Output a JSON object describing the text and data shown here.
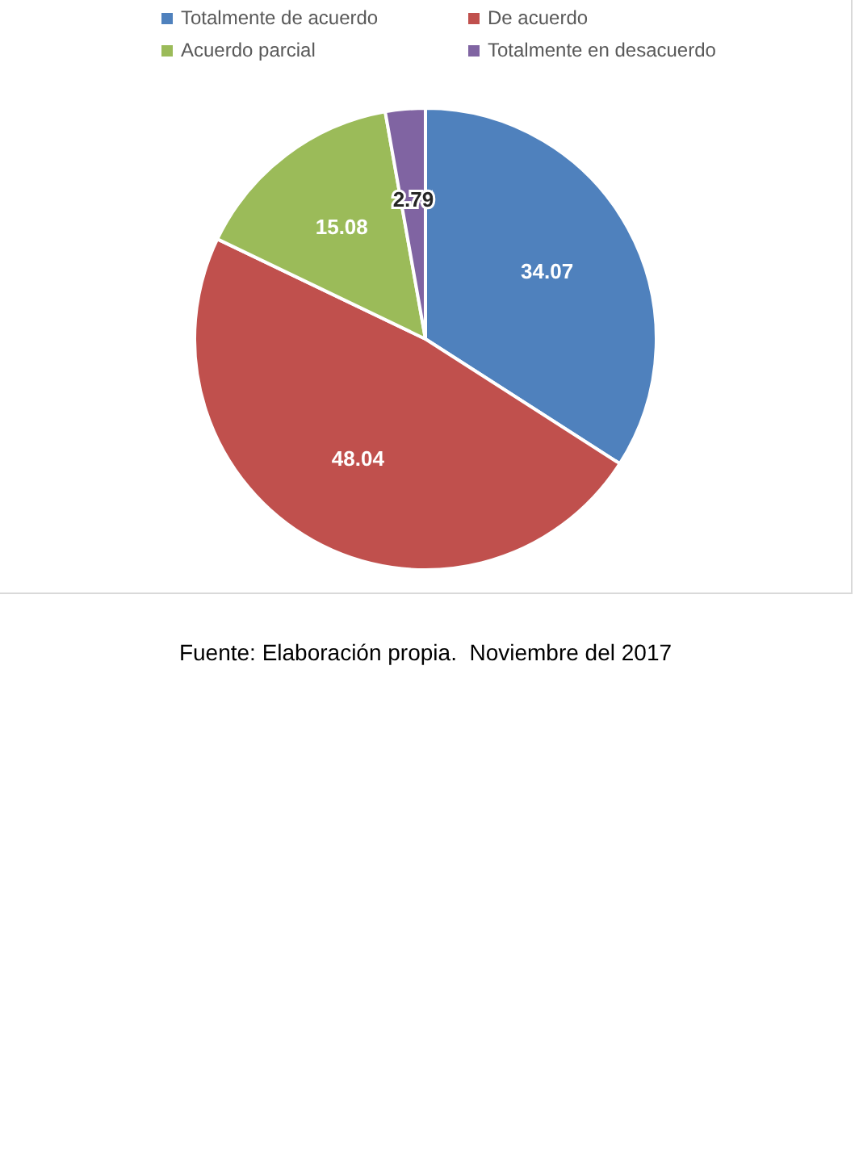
{
  "chart_data": {
    "type": "pie",
    "categories": [
      "Totalmente de acuerdo",
      "De acuerdo",
      "Acuerdo parcial",
      "Totalmente en desacuerdo"
    ],
    "values": [
      34.07,
      48.04,
      15.08,
      2.79
    ],
    "colors": [
      "#4f81bd",
      "#c0504d",
      "#9bbb59",
      "#8064a2"
    ],
    "data_labels": true,
    "legend": "top",
    "annotations": [
      "Fuente: Elaboración propia.  Noviembre del 2017"
    ]
  }
}
